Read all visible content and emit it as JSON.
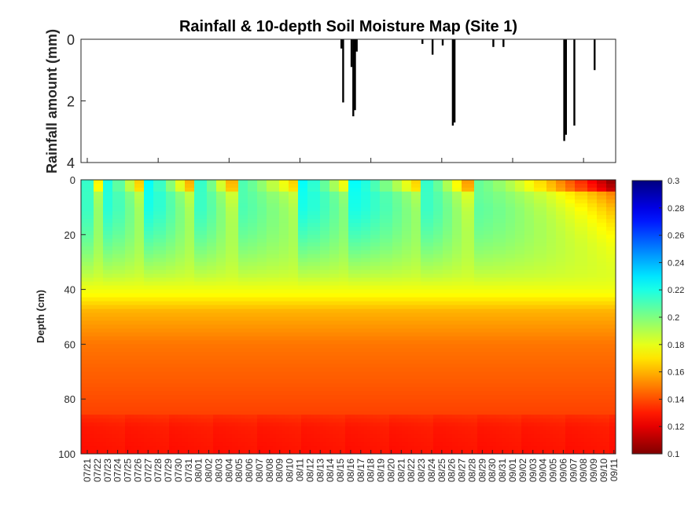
{
  "title": "Rainfall & 10-depth Soil Moisture Map (Site 1)",
  "chart_data": [
    {
      "type": "bar",
      "title": "Rainfall & 10-depth Soil Moisture Map (Site 1)",
      "ylabel": "Rainfall amount (mm)",
      "y_reversed": true,
      "ylim": [
        0,
        4
      ],
      "yticks": [
        "0",
        "2",
        "4"
      ],
      "bars": [
        {
          "date": "08/15",
          "values": [
            0.3,
            2.05
          ]
        },
        {
          "date": "08/16",
          "values": [
            0.9,
            2.5,
            2.3,
            0.4
          ]
        },
        {
          "date": "08/23",
          "values": [
            0.15
          ]
        },
        {
          "date": "08/24",
          "values": [
            0.5
          ]
        },
        {
          "date": "08/25",
          "values": [
            0.2
          ]
        },
        {
          "date": "08/26",
          "values": [
            2.8,
            2.7
          ]
        },
        {
          "date": "08/30",
          "values": [
            0.25
          ]
        },
        {
          "date": "08/31",
          "values": [
            0.25
          ]
        },
        {
          "date": "09/06",
          "values": [
            3.3,
            3.1
          ]
        },
        {
          "date": "09/07",
          "values": [
            2.8
          ]
        },
        {
          "date": "09/09",
          "values": [
            1.0
          ]
        }
      ]
    },
    {
      "type": "heatmap",
      "ylabel": "Depth (cm)",
      "xlabel": "",
      "ylim": [
        0,
        100
      ],
      "y_reversed": true,
      "yticks": [
        "0",
        "20",
        "40",
        "60",
        "80",
        "100"
      ],
      "dates": [
        "07/21",
        "07/22",
        "07/23",
        "07/24",
        "07/25",
        "07/26",
        "07/27",
        "07/28",
        "07/29",
        "07/30",
        "07/31",
        "08/01",
        "08/02",
        "08/03",
        "08/04",
        "08/05",
        "08/06",
        "08/07",
        "08/08",
        "08/09",
        "08/10",
        "08/11",
        "08/12",
        "08/13",
        "08/14",
        "08/15",
        "08/16",
        "08/17",
        "08/18",
        "08/19",
        "08/20",
        "08/21",
        "08/22",
        "08/23",
        "08/24",
        "08/25",
        "08/26",
        "08/27",
        "08/28",
        "08/29",
        "08/30",
        "08/31",
        "09/01",
        "09/02",
        "09/03",
        "09/04",
        "09/05",
        "09/06",
        "09/07",
        "09/08",
        "09/09",
        "09/10",
        "09/11"
      ],
      "colorbar": {
        "colormap": "jet-reversed",
        "min": 0.1,
        "max": 0.3,
        "ticks": [
          "0.1",
          "0.12",
          "0.14",
          "0.16",
          "0.18",
          "0.2",
          "0.22",
          "0.24",
          "0.26",
          "0.28",
          "0.3"
        ]
      },
      "depth_profile": [
        {
          "depth": 0,
          "value": 0.2
        },
        {
          "depth": 10,
          "value": 0.21
        },
        {
          "depth": 25,
          "value": 0.195
        },
        {
          "depth": 35,
          "value": 0.185
        },
        {
          "depth": 42,
          "value": 0.175
        },
        {
          "depth": 48,
          "value": 0.16
        },
        {
          "depth": 60,
          "value": 0.148
        },
        {
          "depth": 75,
          "value": 0.142
        },
        {
          "depth": 85,
          "value": 0.138
        },
        {
          "depth": 90,
          "value": 0.133
        },
        {
          "depth": 100,
          "value": 0.131
        }
      ],
      "wetting_events": [
        {
          "start": "07/21",
          "end": "07/23",
          "surface_low": 0.15,
          "surface_high": 0.215
        },
        {
          "start": "07/23",
          "end": "07/27",
          "surface_low": 0.17,
          "surface_high": 0.22
        },
        {
          "start": "07/27",
          "end": "08/01",
          "surface_low": 0.17,
          "surface_high": 0.225
        },
        {
          "start": "08/01",
          "end": "08/05",
          "surface_low": 0.165,
          "surface_high": 0.215
        },
        {
          "start": "08/05",
          "end": "08/11",
          "surface_low": 0.175,
          "surface_high": 0.21
        },
        {
          "start": "08/11",
          "end": "08/16",
          "surface_low": 0.185,
          "surface_high": 0.225
        },
        {
          "start": "08/16",
          "end": "08/23",
          "surface_low": 0.18,
          "surface_high": 0.225
        },
        {
          "start": "08/23",
          "end": "08/28",
          "surface_low": 0.165,
          "surface_high": 0.215
        },
        {
          "start": "08/28",
          "end": "09/11",
          "surface_low": 0.135,
          "surface_high": 0.205
        }
      ]
    }
  ]
}
